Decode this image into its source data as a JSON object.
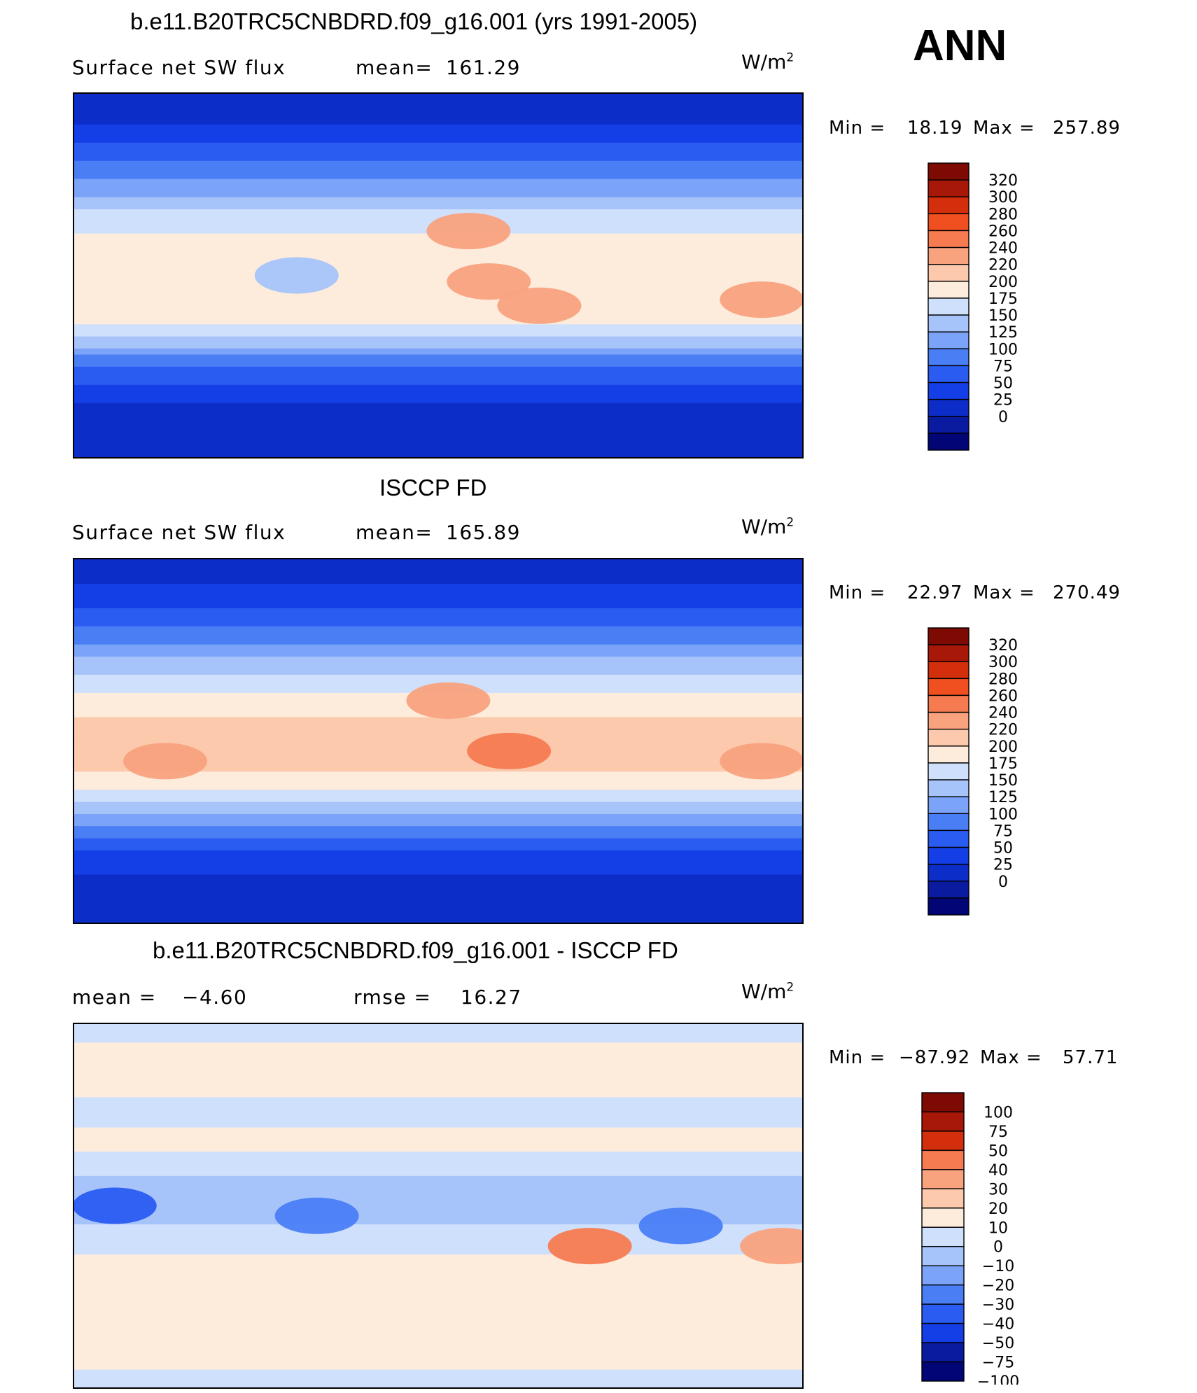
{
  "header": {
    "season": "ANN"
  },
  "colors": {
    "abs_levels": [
      "#020576",
      "#0a1ba0",
      "#0d2dc8",
      "#143ee6",
      "#2a5cf2",
      "#4a7ef5",
      "#7ba3f7",
      "#a6c4fa",
      "#cfe0fd",
      "#fdecdc",
      "#fcc9ad",
      "#f9a27e",
      "#f67b51",
      "#f04f1f",
      "#d32f0c",
      "#a71808",
      "#7e0a04"
    ],
    "diff_levels": [
      "#020576",
      "#0a1ba0",
      "#143ee6",
      "#2a5cf2",
      "#4a7ef5",
      "#7ba3f7",
      "#a6c4fa",
      "#cfe0fd",
      "#fdecdc",
      "#fcc9ad",
      "#f9a27e",
      "#f67b51",
      "#d32f0c",
      "#a71808",
      "#7e0a04"
    ]
  },
  "chart_data": [
    {
      "type": "heatmap",
      "title": "b.e11.B20TRC5CNBDRD.f09_g16.001 (yrs 1991-2005)",
      "left_label": "Surface net SW flux",
      "stat_label": "mean=",
      "stat_value": "161.29",
      "units_base": "W/m",
      "units_exp": "2",
      "min_label": "Min =",
      "min_value": "18.19",
      "max_label": "Max =",
      "max_value": "257.89",
      "colorbar_ticks": [
        "320",
        "300",
        "280",
        "260",
        "240",
        "220",
        "200",
        "175",
        "150",
        "125",
        "100",
        "75",
        "50",
        "25",
        "0"
      ],
      "field": {
        "lat": [
          -90,
          -75,
          -60,
          -45,
          -30,
          -15,
          0,
          15,
          30,
          45,
          60,
          75,
          90
        ],
        "lon": [
          0,
          60,
          120,
          180,
          240,
          300,
          360
        ],
        "zonal": [
          25,
          30,
          60,
          105,
          190,
          215,
          205,
          210,
          180,
          125,
          85,
          45,
          30
        ],
        "cells": [
          {
            "lon": 110,
            "lat": 0,
            "value": 160
          },
          {
            "lon": 205,
            "lat": -3,
            "value": 250
          },
          {
            "lon": 230,
            "lat": -15,
            "value": 255
          },
          {
            "lon": 340,
            "lat": -12,
            "value": 250
          },
          {
            "lon": 195,
            "lat": 22,
            "value": 240
          }
        ]
      }
    },
    {
      "type": "heatmap",
      "title": "ISCCP FD",
      "left_label": "Surface net SW flux",
      "stat_label": "mean=",
      "stat_value": "165.89",
      "units_base": "W/m",
      "units_exp": "2",
      "min_label": "Min =",
      "min_value": "22.97",
      "max_label": "Max =",
      "max_value": "270.49",
      "colorbar_ticks": [
        "320",
        "300",
        "280",
        "260",
        "240",
        "220",
        "200",
        "175",
        "150",
        "125",
        "100",
        "75",
        "50",
        "25",
        "0"
      ],
      "field": {
        "lat": [
          -90,
          -75,
          -60,
          -45,
          -30,
          -15,
          0,
          15,
          30,
          45,
          60,
          75,
          90
        ],
        "lon": [
          0,
          60,
          120,
          180,
          240,
          300,
          360
        ],
        "zonal": [
          28,
          32,
          65,
          110,
          190,
          225,
          230,
          215,
          185,
          130,
          90,
          50,
          35
        ],
        "cells": [
          {
            "lon": 215,
            "lat": -5,
            "value": 265
          },
          {
            "lon": 45,
            "lat": -10,
            "value": 250
          },
          {
            "lon": 340,
            "lat": -10,
            "value": 245
          },
          {
            "lon": 185,
            "lat": 20,
            "value": 245
          }
        ]
      }
    },
    {
      "type": "heatmap",
      "title": "b.e11.B20TRC5CNBDRD.f09_g16.001 - ISCCP FD",
      "left_label": "mean =",
      "left_value": "−4.60",
      "stat_label": "rmse =",
      "stat_value": "16.27",
      "units_base": "W/m",
      "units_exp": "2",
      "min_label": "Min =",
      "min_value": "−87.92",
      "max_label": "Max =",
      "max_value": "57.71",
      "colorbar_ticks": [
        "100",
        "75",
        "50",
        "40",
        "30",
        "20",
        "10",
        "0",
        "−10",
        "−20",
        "−30",
        "−40",
        "−50",
        "−75",
        "−100"
      ],
      "field": {
        "lat": [
          -90,
          -75,
          -60,
          -45,
          -30,
          -15,
          0,
          15,
          30,
          45,
          60,
          75,
          90
        ],
        "lon": [
          0,
          60,
          120,
          180,
          240,
          300,
          360
        ],
        "zonal": [
          -5,
          5,
          8,
          5,
          5,
          -8,
          -15,
          -10,
          5,
          -5,
          5,
          3,
          -5
        ],
        "cells": [
          {
            "lon": 20,
            "lat": 0,
            "value": -45
          },
          {
            "lon": 120,
            "lat": -5,
            "value": -40
          },
          {
            "lon": 300,
            "lat": -10,
            "value": -40
          },
          {
            "lon": 255,
            "lat": -20,
            "value": 30
          },
          {
            "lon": 350,
            "lat": -20,
            "value": 20
          }
        ]
      }
    }
  ]
}
